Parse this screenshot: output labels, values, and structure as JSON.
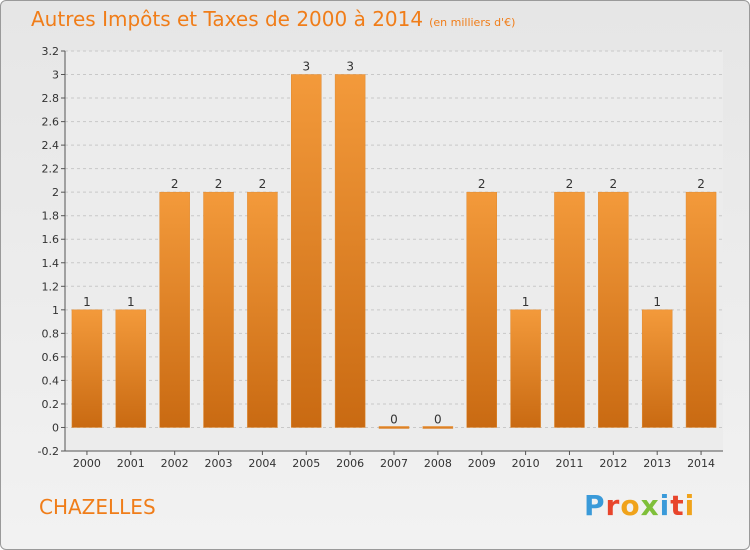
{
  "title": "Autres Impôts et Taxes de 2000 à 2014",
  "subtitle": "(en milliers d'€)",
  "city": "CHAZELLES",
  "brand": "Proxiti",
  "colors": {
    "bar": "#f39a3b",
    "bar_dark": "#c96a12",
    "title": "#f07d19"
  },
  "chart_data": {
    "type": "bar",
    "title": "Autres Impôts et Taxes de 2000 à 2014",
    "subtitle": "(en milliers d'€)",
    "categories": [
      "2000",
      "2001",
      "2002",
      "2003",
      "2004",
      "2005",
      "2006",
      "2007",
      "2008",
      "2009",
      "2010",
      "2011",
      "2012",
      "2013",
      "2014"
    ],
    "values": [
      1,
      1,
      2,
      2,
      2,
      3,
      3,
      0,
      0,
      2,
      1,
      2,
      2,
      1,
      2
    ],
    "data_labels": [
      "1",
      "1",
      "2",
      "2",
      "2",
      "3",
      "3",
      "0",
      "0",
      "2",
      "1",
      "2",
      "2",
      "1",
      "2"
    ],
    "ylim": [
      -0.2,
      3.2
    ],
    "yticks": [
      "-0.2",
      "0",
      "0.2",
      "0.4",
      "0.6",
      "0.8",
      "1",
      "1.2",
      "1.4",
      "1.6",
      "1.8",
      "2",
      "2.2",
      "2.4",
      "2.6",
      "2.8",
      "3",
      "3.2"
    ],
    "grid": true
  }
}
